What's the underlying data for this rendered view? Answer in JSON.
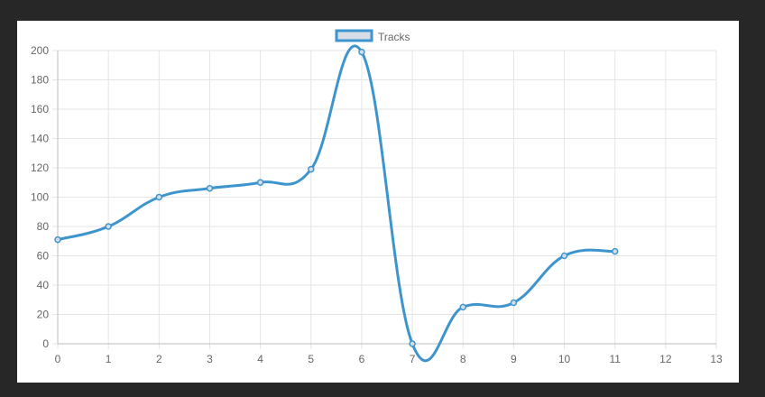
{
  "chart_data": {
    "type": "line",
    "legend": {
      "position": "top-center"
    },
    "grid": true,
    "x": [
      0,
      1,
      2,
      3,
      4,
      5,
      6,
      7,
      8,
      9,
      10,
      11
    ],
    "series": [
      {
        "name": "Tracks",
        "values": [
          71,
          80,
          100,
          106,
          110,
          119,
          199,
          0,
          25,
          28,
          60,
          63
        ],
        "color": "#3e95cd",
        "fill": "#d6dde6",
        "smooth": true
      }
    ],
    "xlim": [
      0,
      13
    ],
    "ylim": [
      0,
      200
    ],
    "xticks": [
      0,
      1,
      2,
      3,
      4,
      5,
      6,
      7,
      8,
      9,
      10,
      11,
      12,
      13
    ],
    "yticks": [
      0,
      20,
      40,
      60,
      80,
      100,
      120,
      140,
      160,
      180,
      200
    ]
  },
  "colors": {
    "background": "#272727",
    "panel": "#ffffff",
    "grid": "#e5e5e5",
    "axis": "#bdbdbd",
    "tick_text": "#666666"
  }
}
